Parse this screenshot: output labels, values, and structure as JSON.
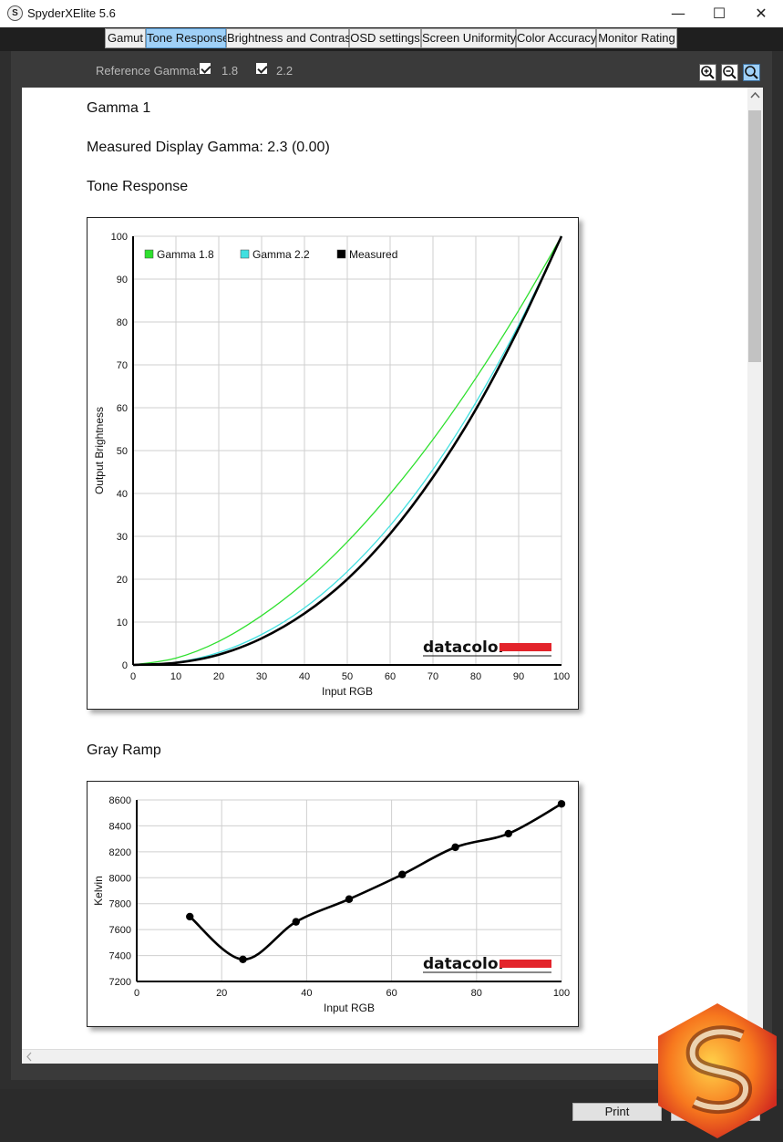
{
  "window": {
    "title": "SpyderXElite 5.6",
    "icon_letter": "S",
    "minimize_glyph": "—",
    "maximize_glyph": "☐",
    "close_glyph": "✕"
  },
  "tabs": [
    {
      "label": "Gamut",
      "active": false
    },
    {
      "label": "Tone Response",
      "active": true
    },
    {
      "label": "Brightness and Contrast",
      "active": false
    },
    {
      "label": "OSD settings",
      "active": false
    },
    {
      "label": "Screen Uniformity",
      "active": false
    },
    {
      "label": "Color Accuracy",
      "active": false
    },
    {
      "label": "Monitor Rating",
      "active": false
    }
  ],
  "toolbar": {
    "reference_gamma_label": "Reference Gamma:",
    "gamma_18_label": "1.8",
    "gamma_22_label": "2.2",
    "gamma_18_checked": true,
    "gamma_22_checked": true
  },
  "zoom_buttons": [
    "zoom-in-icon",
    "zoom-out-icon",
    "zoom-fit-icon"
  ],
  "document": {
    "gamma_heading": "Gamma 1",
    "measured_gamma": "Measured Display Gamma: 2.3 (0.00)",
    "tone_response_heading": "Tone Response",
    "gray_ramp_heading": "Gray Ramp"
  },
  "brand": {
    "logo_text": "datacolor",
    "logo_color": "#e3242b"
  },
  "colors": {
    "gamma18": "#2ee02e",
    "gamma22": "#40e0e0",
    "measured": "#000000",
    "tab_active": "#9fd0f7"
  },
  "chart_data": [
    {
      "type": "line",
      "title": "Tone Response",
      "xlabel": "Input RGB",
      "ylabel": "Output Brightness",
      "xlim": [
        0,
        100
      ],
      "ylim": [
        0,
        100
      ],
      "xticks": [
        0,
        10,
        20,
        30,
        40,
        50,
        60,
        70,
        80,
        90,
        100
      ],
      "yticks": [
        0,
        10,
        20,
        30,
        40,
        50,
        60,
        70,
        80,
        90,
        100
      ],
      "grid": true,
      "legend_position": "top-left",
      "series": [
        {
          "name": "Gamma 1.8",
          "color": "#2ee02e",
          "x": [
            0,
            10,
            20,
            30,
            40,
            50,
            60,
            70,
            80,
            90,
            100
          ],
          "y": [
            0,
            1.6,
            5.5,
            11.5,
            19.2,
            28.7,
            39.9,
            52.6,
            66.9,
            82.7,
            100
          ]
        },
        {
          "name": "Gamma 2.2",
          "color": "#40e0e0",
          "x": [
            0,
            10,
            20,
            30,
            40,
            50,
            60,
            70,
            80,
            90,
            100
          ],
          "y": [
            0,
            0.6,
            2.9,
            7.1,
            13.3,
            21.8,
            32.5,
            45.6,
            61.2,
            79.3,
            100
          ]
        },
        {
          "name": "Measured",
          "color": "#000000",
          "x": [
            0,
            10,
            20,
            30,
            40,
            50,
            60,
            70,
            80,
            90,
            100
          ],
          "y": [
            0,
            0.5,
            2.4,
            6.2,
            12.0,
            20.0,
            30.6,
            43.8,
            59.6,
            78.5,
            100
          ]
        }
      ]
    },
    {
      "type": "line",
      "title": "Gray Ramp",
      "xlabel": "Input RGB",
      "ylabel": "Kelvin",
      "xlim": [
        0,
        100
      ],
      "ylim": [
        7200,
        8600
      ],
      "xticks": [
        0,
        20,
        40,
        60,
        80,
        100
      ],
      "yticks": [
        7200,
        7400,
        7600,
        7800,
        8000,
        8200,
        8400,
        8600
      ],
      "grid": true,
      "series": [
        {
          "color": "#000000",
          "x": [
            12.5,
            25,
            37.5,
            50,
            62.5,
            75,
            87.5,
            100
          ],
          "y": [
            7700,
            7370,
            7660,
            7835,
            8025,
            8235,
            8340,
            8570
          ]
        }
      ]
    }
  ]
}
